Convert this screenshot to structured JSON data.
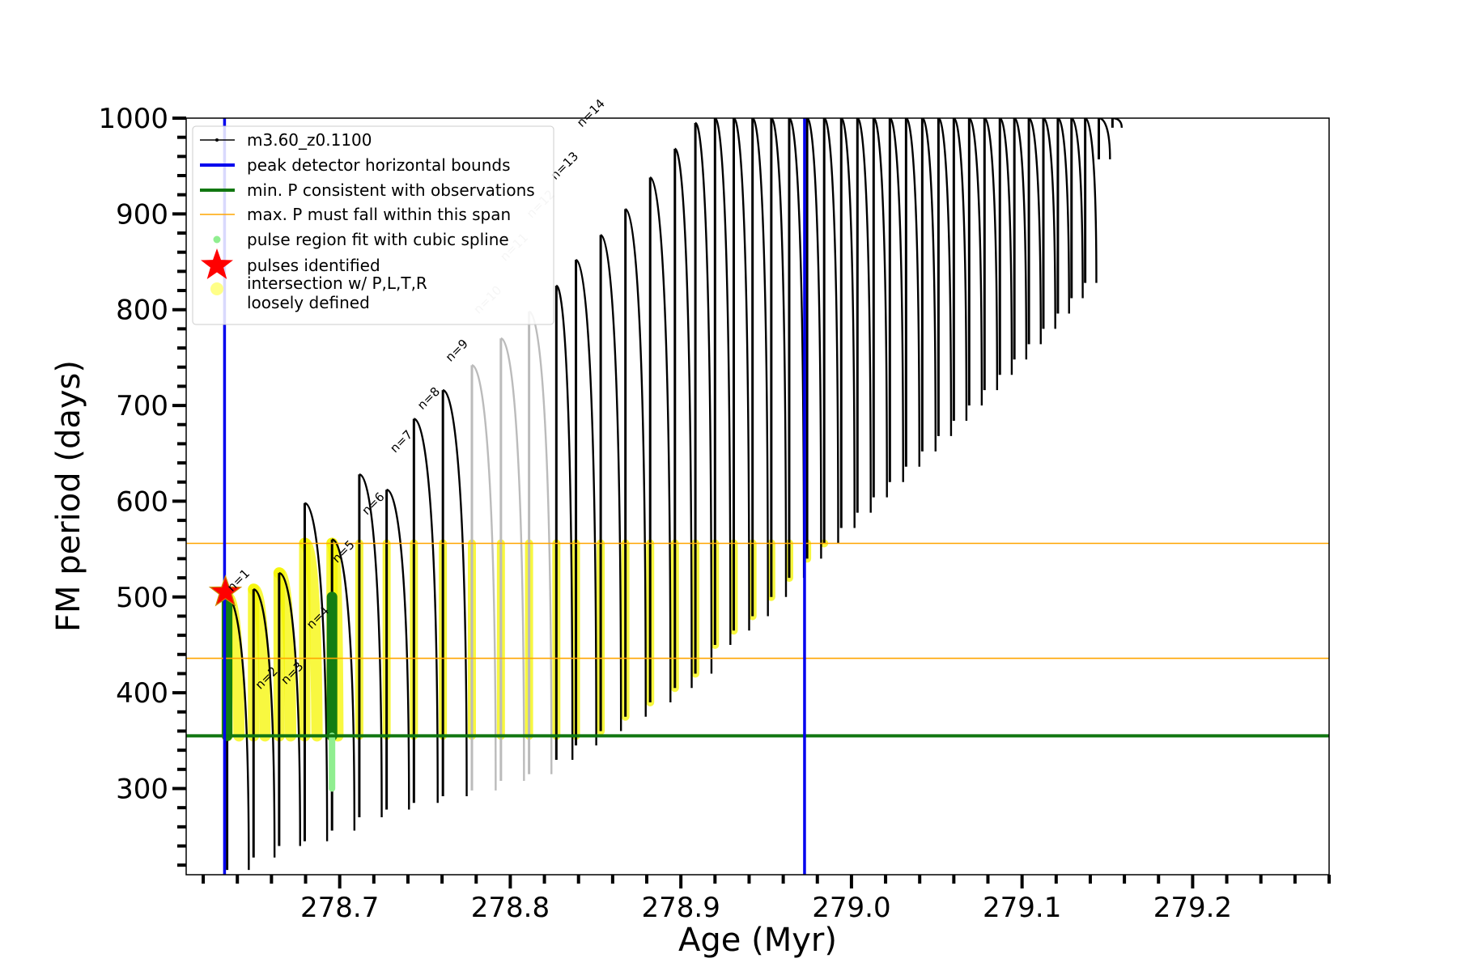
{
  "chart_data": {
    "type": "line",
    "xlabel": "Age (Myr)",
    "ylabel": "FM period (days)",
    "xlim": [
      278.61,
      279.28
    ],
    "ylim": [
      210,
      1000
    ],
    "x_ticks": [
      278.7,
      278.8,
      278.9,
      279.0,
      279.1,
      279.2
    ],
    "x_tick_labels": [
      "278.7",
      "278.8",
      "278.9",
      "279.0",
      "279.1",
      "279.2"
    ],
    "x_minor_step": 0.02,
    "y_ticks": [
      300,
      400,
      500,
      600,
      700,
      800,
      900,
      1000
    ],
    "y_tick_labels": [
      "300",
      "400",
      "500",
      "600",
      "700",
      "800",
      "900",
      "1000"
    ],
    "y_minor_step": 20,
    "grid": false,
    "legend_placement": "top-left",
    "legend": [
      {
        "label": "m3.60_z0.1100",
        "kind": "line-marker",
        "color": "#000000"
      },
      {
        "label": "peak detector horizontal bounds",
        "kind": "line",
        "color": "#0000ee"
      },
      {
        "label": "min. P consistent with observations",
        "kind": "line",
        "color": "#117711"
      },
      {
        "label": "max. P must fall within this span",
        "kind": "thin-line",
        "color": "#ffa500"
      },
      {
        "label": "pulse region fit with cubic spline",
        "kind": "dot",
        "color": "#90ee90"
      },
      {
        "label": "pulses identified",
        "kind": "star",
        "color": "#ff0000"
      },
      {
        "label": "intersection w/ P,L,T,R\nloosely defined",
        "kind": "dot",
        "color": "#ffff88"
      }
    ],
    "vertical_lines": [
      {
        "x": 278.6325,
        "color": "#0000ee"
      },
      {
        "x": 278.9725,
        "color": "#0000ee"
      }
    ],
    "horizontal_lines": [
      {
        "y": 355,
        "color": "#117711"
      },
      {
        "y": 556,
        "color": "#ffa500"
      },
      {
        "y": 436,
        "color": "#ffa500"
      }
    ],
    "series": [
      {
        "name": "m3.60_z0.1100",
        "pulses": [
          {
            "x": 278.634,
            "min": 215,
            "max": 500
          },
          {
            "x": 278.6495,
            "min": 228,
            "max": 508
          },
          {
            "x": 278.6645,
            "min": 240,
            "max": 525
          },
          {
            "x": 278.6795,
            "min": 245,
            "max": 598
          },
          {
            "x": 278.6955,
            "min": 256,
            "max": 560
          },
          {
            "x": 278.7115,
            "min": 270,
            "max": 628
          },
          {
            "x": 278.7275,
            "min": 278,
            "max": 612
          },
          {
            "x": 278.7435,
            "min": 285,
            "max": 686
          },
          {
            "x": 278.7605,
            "min": 292,
            "max": 716
          },
          {
            "x": 278.7775,
            "min": 298,
            "max": 742
          },
          {
            "x": 278.7945,
            "min": 308,
            "max": 770
          },
          {
            "x": 278.811,
            "min": 315,
            "max": 798
          },
          {
            "x": 278.827,
            "min": 330,
            "max": 825
          },
          {
            "x": 278.8385,
            "min": 345,
            "max": 852
          },
          {
            "x": 278.853,
            "min": 360,
            "max": 878
          },
          {
            "x": 278.8675,
            "min": 375,
            "max": 905
          },
          {
            "x": 278.882,
            "min": 390,
            "max": 938
          },
          {
            "x": 278.8965,
            "min": 405,
            "max": 968
          },
          {
            "x": 278.9085,
            "min": 420,
            "max": 995
          },
          {
            "x": 278.92,
            "min": 450,
            "max": 1000
          },
          {
            "x": 278.931,
            "min": 465,
            "max": 1000
          },
          {
            "x": 278.942,
            "min": 480,
            "max": 1000
          },
          {
            "x": 278.953,
            "min": 500,
            "max": 1000
          },
          {
            "x": 278.9635,
            "min": 520,
            "max": 1000
          },
          {
            "x": 278.974,
            "min": 540,
            "max": 1000
          },
          {
            "x": 278.984,
            "min": 556,
            "max": 1000
          },
          {
            "x": 278.994,
            "min": 572,
            "max": 1000
          },
          {
            "x": 279.0035,
            "min": 588,
            "max": 1000
          },
          {
            "x": 279.013,
            "min": 604,
            "max": 1000
          },
          {
            "x": 279.0225,
            "min": 620,
            "max": 1000
          },
          {
            "x": 279.032,
            "min": 636,
            "max": 1000
          },
          {
            "x": 279.0415,
            "min": 652,
            "max": 1000
          },
          {
            "x": 279.051,
            "min": 668,
            "max": 1000
          },
          {
            "x": 279.06,
            "min": 684,
            "max": 1000
          },
          {
            "x": 279.069,
            "min": 700,
            "max": 1000
          },
          {
            "x": 279.078,
            "min": 716,
            "max": 1000
          },
          {
            "x": 279.087,
            "min": 732,
            "max": 1000
          },
          {
            "x": 279.0955,
            "min": 748,
            "max": 1000
          },
          {
            "x": 279.104,
            "min": 764,
            "max": 1000
          },
          {
            "x": 279.1125,
            "min": 780,
            "max": 1000
          },
          {
            "x": 279.121,
            "min": 796,
            "max": 1000
          },
          {
            "x": 279.129,
            "min": 812,
            "max": 1000
          },
          {
            "x": 279.137,
            "min": 828,
            "max": 1000
          },
          {
            "x": 279.145,
            "min": 957,
            "max": 1000
          },
          {
            "x": 279.153,
            "min": 990,
            "max": 1000
          }
        ]
      }
    ],
    "spline_regions": [
      {
        "x": 278.634,
        "min": 355,
        "max": 500
      },
      {
        "x": 278.6955,
        "min": 300,
        "max": 500
      }
    ],
    "pulses_identified": [
      {
        "x": 278.633,
        "y": 505
      }
    ],
    "pulse_labels": [
      {
        "text": "n=1",
        "x": 278.637,
        "y": 505,
        "faded": false
      },
      {
        "text": "n=2",
        "x": 278.6535,
        "y": 403,
        "faded": false
      },
      {
        "text": "n=3",
        "x": 278.6685,
        "y": 408,
        "faded": false
      },
      {
        "text": "n=4",
        "x": 278.6835,
        "y": 466,
        "faded": false
      },
      {
        "text": "n=5",
        "x": 278.6985,
        "y": 535,
        "faded": false
      },
      {
        "text": "n=6",
        "x": 278.716,
        "y": 585,
        "faded": false
      },
      {
        "text": "n=7",
        "x": 278.7325,
        "y": 650,
        "faded": false
      },
      {
        "text": "n=8",
        "x": 278.7485,
        "y": 695,
        "faded": false
      },
      {
        "text": "n=9",
        "x": 278.765,
        "y": 745,
        "faded": false
      },
      {
        "text": "n=10",
        "x": 278.7815,
        "y": 795,
        "faded": true
      },
      {
        "text": "n=11",
        "x": 278.797,
        "y": 850,
        "faded": true
      },
      {
        "text": "n=12",
        "x": 278.8125,
        "y": 895,
        "faded": true
      },
      {
        "text": "n=13",
        "x": 278.8265,
        "y": 935,
        "faded": false
      },
      {
        "text": "n=14",
        "x": 278.842,
        "y": 990,
        "faded": false
      }
    ]
  }
}
